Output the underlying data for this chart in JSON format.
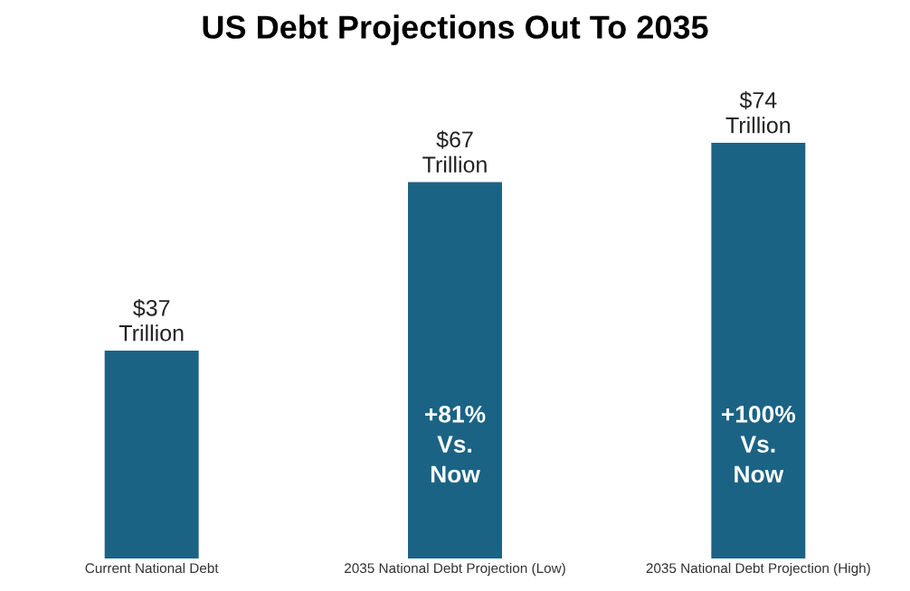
{
  "chart_data": {
    "type": "bar",
    "title": "US Debt Projections Out To 2035",
    "categories": [
      "Current National Debt",
      "2035 National Debt Projection (Low)",
      "2035 National Debt Projection (High)"
    ],
    "values": [
      37,
      67,
      74
    ],
    "color": "#1b6384",
    "value_labels": [
      "$37\nTrillion",
      "$67\nTrillion",
      "$74\nTrillion"
    ],
    "annotations": [
      "+81%\nVs.\nNow",
      "+100%\nVs.\nNow"
    ],
    "tick_labels": "x",
    "grid": false,
    "legend": false
  }
}
